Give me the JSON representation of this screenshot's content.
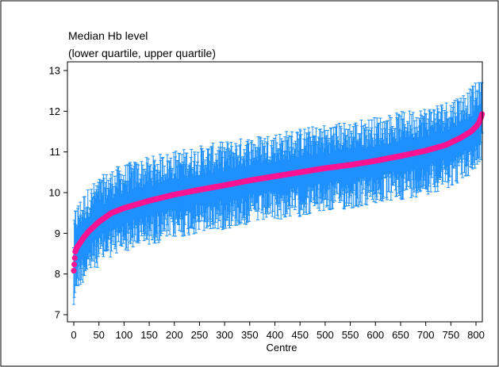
{
  "chart_data": {
    "type": "scatter",
    "title": "Median Hb level",
    "subtitle": "(lower quartile, upper quartile)",
    "xlabel": "Centre",
    "ylabel": "",
    "xlim": [
      0,
      813
    ],
    "ylim": [
      7,
      13
    ],
    "x_ticks": [
      "0",
      "50",
      "100",
      "150",
      "200",
      "250",
      "300",
      "350",
      "400",
      "450",
      "500",
      "550",
      "600",
      "650",
      "700",
      "750",
      "800"
    ],
    "y_ticks": [
      "7",
      "8",
      "9",
      "10",
      "11",
      "12",
      "13"
    ],
    "n_centres": 813,
    "median_profile": {
      "x": [
        0,
        3,
        6,
        10,
        20,
        30,
        50,
        75,
        100,
        150,
        200,
        250,
        300,
        350,
        400,
        450,
        500,
        550,
        600,
        650,
        700,
        740,
        770,
        790,
        800,
        806,
        810,
        812
      ],
      "y": [
        8.08,
        8.55,
        8.65,
        8.72,
        8.9,
        9.05,
        9.28,
        9.5,
        9.62,
        9.8,
        9.95,
        10.07,
        10.18,
        10.3,
        10.4,
        10.5,
        10.6,
        10.68,
        10.78,
        10.9,
        11.03,
        11.17,
        11.35,
        11.5,
        11.62,
        11.72,
        11.85,
        11.93
      ]
    },
    "iqr_half_width_approx": 0.75,
    "grid": false,
    "grid_step": 0,
    "series": [
      {
        "name": "",
        "role": "interquartile range",
        "color": "#1e90ff"
      },
      {
        "name": "",
        "role": "median",
        "color": "#ff1493"
      }
    ]
  }
}
